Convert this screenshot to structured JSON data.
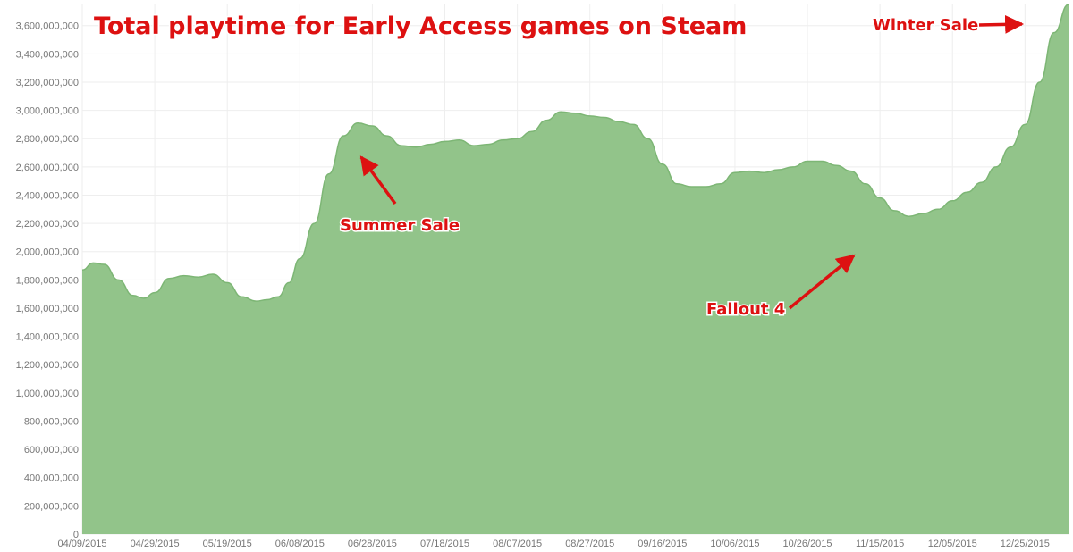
{
  "chart_data": {
    "type": "area",
    "title": "Total playtime for Early Access games on Steam",
    "xlabel": "",
    "ylabel": "",
    "ylim": [
      0,
      3750000000
    ],
    "grid": true,
    "legend": "none",
    "colors": {
      "area": "#92c48a",
      "line": "#7db675",
      "grid": "#eeeeee",
      "annotation": "#dd1111"
    },
    "x_ticks": [
      "04/09/2015",
      "04/29/2015",
      "05/19/2015",
      "06/08/2015",
      "06/28/2015",
      "07/18/2015",
      "08/07/2015",
      "08/27/2015",
      "09/16/2015",
      "10/06/2015",
      "10/26/2015",
      "11/15/2015",
      "12/05/2015",
      "12/25/2015"
    ],
    "y_ticks": [
      "0",
      "200,000,000",
      "400,000,000",
      "600,000,000",
      "800,000,000",
      "1,000,000,000",
      "1,200,000,000",
      "1,400,000,000",
      "1,600,000,000",
      "1,800,000,000",
      "2,000,000,000",
      "2,200,000,000",
      "2,400,000,000",
      "2,600,000,000",
      "2,800,000,000",
      "3,000,000,000",
      "3,200,000,000",
      "3,400,000,000",
      "3,600,000,000"
    ],
    "series": [
      {
        "x": [
          "04/09/2015",
          "04/12/2015",
          "04/15/2015",
          "04/19/2015",
          "04/23/2015",
          "04/26/2015",
          "04/29/2015",
          "05/03/2015",
          "05/07/2015",
          "05/11/2015",
          "05/15/2015",
          "05/19/2015",
          "05/23/2015",
          "05/27/2015",
          "05/30/2015",
          "06/02/2015",
          "06/05/2015",
          "06/08/2015",
          "06/12/2015",
          "06/16/2015",
          "06/20/2015",
          "06/24/2015",
          "06/28/2015",
          "07/02/2015",
          "07/06/2015",
          "07/10/2015",
          "07/14/2015",
          "07/18/2015",
          "07/22/2015",
          "07/26/2015",
          "07/30/2015",
          "08/03/2015",
          "08/07/2015",
          "08/11/2015",
          "08/15/2015",
          "08/19/2015",
          "08/23/2015",
          "08/27/2015",
          "08/31/2015",
          "09/04/2015",
          "09/08/2015",
          "09/12/2015",
          "09/16/2015",
          "09/20/2015",
          "09/24/2015",
          "09/28/2015",
          "10/02/2015",
          "10/06/2015",
          "10/10/2015",
          "10/14/2015",
          "10/18/2015",
          "10/22/2015",
          "10/26/2015",
          "10/30/2015",
          "11/03/2015",
          "11/07/2015",
          "11/11/2015",
          "11/15/2015",
          "11/19/2015",
          "11/23/2015",
          "11/27/2015",
          "12/01/2015",
          "12/05/2015",
          "12/09/2015",
          "12/13/2015",
          "12/17/2015",
          "12/21/2015",
          "12/25/2015",
          "12/29/2015",
          "01/02/2016",
          "01/06/2016"
        ],
        "values": [
          1870000000,
          1920000000,
          1910000000,
          1800000000,
          1690000000,
          1670000000,
          1710000000,
          1810000000,
          1830000000,
          1820000000,
          1840000000,
          1780000000,
          1680000000,
          1650000000,
          1660000000,
          1680000000,
          1780000000,
          1950000000,
          2200000000,
          2550000000,
          2820000000,
          2910000000,
          2890000000,
          2820000000,
          2750000000,
          2740000000,
          2760000000,
          2780000000,
          2790000000,
          2750000000,
          2760000000,
          2790000000,
          2800000000,
          2850000000,
          2930000000,
          2990000000,
          2980000000,
          2960000000,
          2950000000,
          2920000000,
          2900000000,
          2800000000,
          2620000000,
          2480000000,
          2460000000,
          2460000000,
          2480000000,
          2560000000,
          2570000000,
          2560000000,
          2580000000,
          2600000000,
          2640000000,
          2640000000,
          2610000000,
          2570000000,
          2480000000,
          2380000000,
          2290000000,
          2250000000,
          2270000000,
          2300000000,
          2360000000,
          2420000000,
          2490000000,
          2600000000,
          2740000000,
          2900000000,
          3200000000,
          3550000000,
          3750000000
        ]
      }
    ],
    "annotations": [
      {
        "text": "Summer Sale",
        "x": "06/28/2015",
        "y": 2700000000
      },
      {
        "text": "Fallout 4",
        "x": "11/15/2015",
        "y": 2000000000
      },
      {
        "text": "Winter Sale",
        "x": "01/04/2016",
        "y": 3660000000
      }
    ]
  }
}
